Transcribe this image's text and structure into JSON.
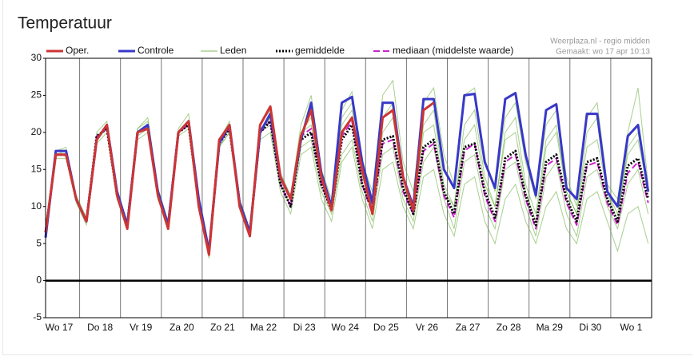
{
  "chart_data": {
    "type": "line",
    "title": "Temperatuur",
    "notes": [
      "Weerplaza.nl - regio midden",
      "Gemaakt: wo 17 apr 10:13"
    ],
    "x": [
      4,
      10,
      16,
      22,
      28,
      34,
      40,
      46,
      52,
      58,
      64,
      70,
      76,
      82,
      88,
      94,
      100,
      106,
      112,
      118,
      124,
      130,
      136,
      142,
      148,
      154,
      160,
      166,
      172,
      178,
      184,
      190,
      196,
      202,
      208,
      214,
      220,
      226,
      232,
      238,
      244,
      250,
      256,
      262,
      268,
      274,
      280,
      286,
      292,
      298,
      304,
      310,
      316,
      322,
      328,
      334,
      340,
      346,
      352,
      358
    ],
    "xlim": [
      4,
      360
    ],
    "xticks": [
      {
        "value": 12,
        "label": "Wo 17"
      },
      {
        "value": 36,
        "label": "Do 18"
      },
      {
        "value": 60,
        "label": "Vr 19"
      },
      {
        "value": 84,
        "label": "Za 20"
      },
      {
        "value": 108,
        "label": "Zo 21"
      },
      {
        "value": 132,
        "label": "Ma 22"
      },
      {
        "value": 156,
        "label": "Di 23"
      },
      {
        "value": 180,
        "label": "Wo 24"
      },
      {
        "value": 204,
        "label": "Do 25"
      },
      {
        "value": 228,
        "label": "Vr 26"
      },
      {
        "value": 252,
        "label": "Za 27"
      },
      {
        "value": 276,
        "label": "Zo 28"
      },
      {
        "value": 300,
        "label": "Ma 29"
      },
      {
        "value": 324,
        "label": "Di 30"
      },
      {
        "value": 348,
        "label": "Wo 1"
      }
    ],
    "ylim": [
      -5,
      30
    ],
    "yticks": [
      -5,
      0,
      5,
      10,
      15,
      20,
      25,
      30
    ],
    "zero_line": true,
    "series": [
      {
        "name": "Oper.",
        "color": "#cc3535",
        "style": "solid",
        "width": 3,
        "values": [
          6.5,
          17,
          17,
          11,
          8,
          19,
          21,
          11.5,
          7,
          20,
          20.5,
          11.5,
          7,
          20,
          21.5,
          10,
          3.5,
          19,
          21,
          10,
          6,
          21,
          23.5,
          14,
          11,
          19.5,
          23,
          14,
          9.5,
          20,
          22,
          15,
          9,
          22,
          23,
          14,
          9.5,
          23,
          24,
          null,
          null,
          null,
          null,
          null,
          null,
          null,
          null,
          null,
          null,
          null,
          null,
          null,
          null,
          null,
          null,
          null,
          null,
          null,
          null,
          null
        ]
      },
      {
        "name": "Controle",
        "color": "#3838c8",
        "style": "solid",
        "width": 3,
        "values": [
          5.8,
          17.5,
          17.5,
          11,
          8,
          19,
          21,
          12,
          7.5,
          20,
          21,
          12,
          7.5,
          20,
          21.5,
          11,
          4,
          18.5,
          21,
          10.5,
          6.5,
          20,
          22.5,
          14,
          11,
          19,
          24,
          14.5,
          10,
          24,
          24.8,
          16,
          10.5,
          24,
          24,
          14,
          10,
          24.5,
          24.5,
          15,
          12.5,
          25,
          25.2,
          16,
          12.5,
          24.5,
          25.3,
          17,
          11.5,
          23,
          23.8,
          12.5,
          11,
          22.5,
          22.5,
          12,
          10,
          19.5,
          21,
          12
        ]
      },
      {
        "name": "Leden",
        "color": "#5fa832",
        "style": "thin",
        "members": [
          [
            6,
            17.5,
            18,
            11.5,
            8.5,
            20,
            21.5,
            12,
            8,
            20.5,
            22,
            12.5,
            8,
            20.5,
            22.5,
            11,
            4.5,
            19,
            21.5,
            11,
            7,
            21,
            23,
            14.5,
            11.5,
            21,
            25,
            15,
            11,
            23,
            25.5,
            16,
            12,
            25,
            27,
            16,
            12,
            24,
            26,
            17,
            13,
            25,
            26,
            16.5,
            12,
            22,
            24,
            16,
            11,
            21,
            23,
            14,
            10,
            22,
            24,
            13,
            11,
            20,
            26,
            13
          ],
          [
            7,
            16.5,
            16.5,
            10.5,
            7.5,
            18.5,
            20,
            11,
            7,
            19,
            20,
            11,
            7,
            19.5,
            20.5,
            10,
            3,
            18,
            20,
            10,
            6,
            19,
            20,
            12,
            9,
            17,
            18,
            11,
            8,
            16,
            18,
            11,
            7,
            15,
            16,
            10,
            7,
            14,
            15,
            9,
            6,
            13,
            14,
            8,
            5,
            11,
            13,
            8,
            5,
            10,
            12,
            7,
            5,
            11,
            12,
            8,
            4,
            9,
            10,
            5
          ],
          [
            6.5,
            17,
            17.5,
            11,
            8,
            19,
            21,
            11.5,
            7.5,
            20.5,
            21.5,
            12,
            7.5,
            20,
            21,
            10.5,
            4,
            18,
            20,
            10,
            6.5,
            20,
            22,
            13,
            10,
            20,
            21,
            14,
            10,
            21,
            23,
            14,
            10,
            20,
            22,
            13,
            9,
            20,
            21,
            12,
            10,
            19,
            21,
            13,
            10,
            19,
            20,
            12,
            8,
            18,
            20,
            12,
            9,
            18,
            19,
            12,
            9,
            17,
            19,
            12
          ],
          [
            6,
            17,
            17,
            11,
            8,
            19.5,
            20.5,
            11.5,
            7.5,
            19.5,
            20.5,
            11,
            7.5,
            20,
            21.5,
            10.5,
            4,
            19,
            21,
            10.5,
            6.5,
            20,
            21,
            13,
            10,
            18,
            19,
            12,
            9,
            17,
            19,
            12,
            8,
            17,
            18,
            11,
            8,
            16,
            18,
            11,
            7,
            16,
            17,
            10,
            7,
            15,
            16,
            10,
            6,
            14,
            16,
            9,
            6,
            14,
            15,
            10,
            7,
            13,
            15,
            9
          ],
          [
            6.5,
            17.5,
            17.5,
            11,
            8,
            19,
            20.5,
            11,
            7,
            20,
            20.5,
            11.5,
            7,
            20,
            21,
            10.5,
            3.5,
            18.5,
            20.5,
            10.5,
            6,
            20,
            22,
            13.5,
            11,
            20,
            22,
            14,
            10,
            22,
            24,
            15,
            11,
            22,
            24,
            14,
            10,
            21,
            23,
            13,
            10,
            21,
            23,
            14,
            10,
            20,
            22,
            13,
            9,
            19,
            21,
            12,
            9,
            20,
            22,
            12,
            8,
            18,
            20,
            12
          ]
        ]
      },
      {
        "name": "gemiddelde",
        "color": "#000000",
        "style": "dotted",
        "width": 3,
        "values": [
          6.5,
          17,
          17,
          11,
          8,
          19.5,
          20.5,
          11.5,
          7.5,
          20,
          21,
          11.5,
          7.5,
          20,
          21,
          10.5,
          4,
          18.5,
          20.5,
          10.5,
          6.5,
          20,
          21.5,
          13,
          10,
          19,
          20,
          13,
          9.5,
          19,
          21,
          13,
          9.5,
          19,
          19.5,
          12.5,
          9,
          18,
          19,
          12,
          9,
          18,
          18.5,
          12,
          8.5,
          16.5,
          17.5,
          11.5,
          7.5,
          16,
          17,
          11,
          8,
          16,
          16.5,
          11,
          8,
          15.5,
          16.5,
          11
        ]
      },
      {
        "name": "mediaan (middelste waarde)",
        "color": "#cc22cc",
        "style": "dashed",
        "width": 2,
        "values": [
          6.5,
          17,
          17,
          11,
          8,
          19.5,
          20.5,
          11.5,
          7.5,
          20,
          21,
          11.5,
          7.5,
          20,
          21,
          10.5,
          4,
          18.5,
          20.5,
          10.5,
          6.5,
          20,
          21.5,
          13,
          10,
          19.5,
          20.5,
          13,
          9.5,
          19.5,
          21.5,
          13,
          9,
          18.5,
          19,
          12,
          9,
          17.5,
          18.5,
          11.5,
          8.5,
          17.5,
          18.5,
          11.5,
          8,
          16,
          17,
          11,
          7,
          15.5,
          16.5,
          10.5,
          7.5,
          15.5,
          16,
          10.5,
          7.5,
          14.5,
          16,
          10.5
        ]
      }
    ]
  }
}
